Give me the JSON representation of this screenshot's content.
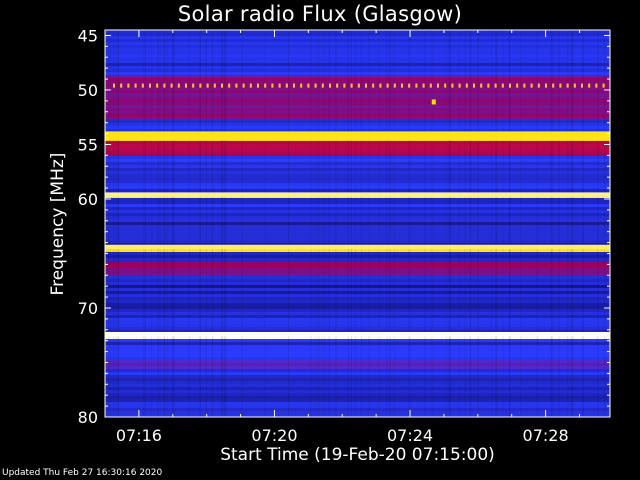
{
  "chart_data": {
    "type": "heatmap",
    "title": "Solar radio Flux (Glasgow)",
    "xlabel": "Start Time (19-Feb-20 07:15:00)",
    "ylabel": "Frequency [MHz]",
    "x_tick_labels": [
      "07:16",
      "07:20",
      "07:24",
      "07:28"
    ],
    "x_tick_minutes": [
      1,
      5,
      9,
      13
    ],
    "xlim_minutes": [
      0,
      14.9
    ],
    "y_tick_labels": [
      "45",
      "50",
      "55",
      "60",
      "70",
      "80"
    ],
    "y_tick_values": [
      45,
      50,
      55,
      60,
      70,
      80
    ],
    "ylim": [
      80,
      44.5
    ],
    "colormap": [
      "#000000",
      "#1a1aa0",
      "#2a3cff",
      "#9a0060",
      "#ff1a1a",
      "#ffe000",
      "#ffffff"
    ],
    "bands": [
      {
        "freq_start": 44.5,
        "freq_end": 45.5,
        "level": 0.25
      },
      {
        "freq_start": 46.5,
        "freq_end": 47.0,
        "level": 0.3
      },
      {
        "freq_start": 48.5,
        "freq_end": 52.5,
        "level": 0.48
      },
      {
        "freq_start": 53.8,
        "freq_end": 54.6,
        "level": 0.85
      },
      {
        "freq_start": 54.6,
        "freq_end": 56.0,
        "level": 0.55
      },
      {
        "freq_start": 59.4,
        "freq_end": 59.8,
        "level": 0.92
      },
      {
        "freq_start": 64.2,
        "freq_end": 64.6,
        "level": 0.9
      },
      {
        "freq_start": 65.5,
        "freq_end": 67.0,
        "level": 0.5
      },
      {
        "freq_start": 72.2,
        "freq_end": 72.6,
        "level": 1.0
      },
      {
        "freq_start": 74.5,
        "freq_end": 75.5,
        "level": 0.42
      }
    ],
    "interference_line_freq": 49.6,
    "burst_point": {
      "minute": 9.7,
      "freq": 51.1
    }
  },
  "footer": "Updated Thu Feb 27 16:30:16 2020"
}
